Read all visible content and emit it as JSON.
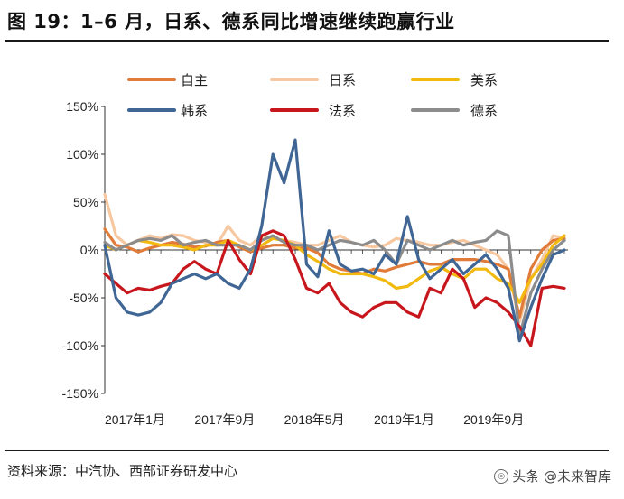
{
  "title": "图 19：1–6 月，日系、德系同比增速继续跑赢行业",
  "source": "资料来源：中汽协、西部证券研发中心",
  "watermark": "头条 @未来智库",
  "chart_data": {
    "type": "line",
    "title": "图 19：1–6 月，日系、德系同比增速继续跑赢行业",
    "xlabel": "",
    "ylabel": "",
    "ylim": [
      -150,
      150
    ],
    "yticks": [
      -150,
      -100,
      -50,
      0,
      50,
      100,
      150
    ],
    "ytick_labels": [
      "-150%",
      "-100%",
      "-50%",
      "0%",
      "50%",
      "100%",
      "150%"
    ],
    "xtick_labels": [
      "2017年1月",
      "2017年9月",
      "2018年5月",
      "2019年1月",
      "2019年9月"
    ],
    "xtick_index": [
      0,
      8,
      16,
      24,
      32
    ],
    "n_points": 42,
    "legend_position": "top",
    "series": [
      {
        "name": "自主",
        "color": "#E07B39",
        "values": [
          22,
          5,
          3,
          -2,
          2,
          5,
          8,
          6,
          3,
          4,
          8,
          10,
          3,
          -2,
          2,
          5,
          5,
          2,
          2,
          -3,
          -15,
          -20,
          -22,
          -25,
          -20,
          -22,
          -18,
          -15,
          -12,
          -15,
          -15,
          -10,
          -10,
          -10,
          -12,
          -15,
          -20,
          -70,
          -20,
          0,
          10,
          12
        ]
      },
      {
        "name": "日系",
        "color": "#F7C8A0",
        "values": [
          58,
          15,
          5,
          10,
          15,
          12,
          16,
          15,
          10,
          8,
          5,
          25,
          10,
          5,
          15,
          12,
          10,
          8,
          5,
          5,
          10,
          15,
          8,
          5,
          3,
          5,
          12,
          10,
          8,
          5,
          5,
          8,
          10,
          5,
          0,
          -5,
          -20,
          -75,
          -30,
          -10,
          15,
          12
        ]
      },
      {
        "name": "美系",
        "color": "#F2B90F",
        "values": [
          5,
          0,
          5,
          10,
          8,
          5,
          5,
          3,
          0,
          5,
          5,
          10,
          5,
          0,
          5,
          12,
          10,
          5,
          -5,
          -12,
          -20,
          -25,
          -25,
          -25,
          -28,
          -32,
          -40,
          -38,
          -30,
          -22,
          -18,
          -25,
          -30,
          -20,
          -20,
          -30,
          -35,
          -55,
          -30,
          -15,
          5,
          15
        ]
      },
      {
        "name": "韩系",
        "color": "#3F6694",
        "values": [
          5,
          -50,
          -65,
          -68,
          -65,
          -55,
          -35,
          -30,
          -25,
          -30,
          -25,
          -35,
          -40,
          -20,
          25,
          100,
          70,
          115,
          -15,
          -28,
          20,
          -15,
          -22,
          -20,
          -25,
          -5,
          -15,
          35,
          -10,
          -30,
          -20,
          -10,
          -25,
          -15,
          -5,
          -20,
          -40,
          -95,
          -60,
          -30,
          -5,
          0
        ]
      },
      {
        "name": "法系",
        "color": "#C8161D",
        "values": [
          -25,
          -35,
          -45,
          -40,
          -42,
          -38,
          -35,
          -20,
          -12,
          -20,
          -25,
          10,
          -10,
          -25,
          15,
          20,
          15,
          -10,
          -40,
          -45,
          -35,
          -55,
          -65,
          -70,
          -60,
          -55,
          -55,
          -65,
          -70,
          -40,
          -45,
          -20,
          -30,
          -60,
          -50,
          -55,
          -65,
          -80,
          -100,
          -40,
          -38,
          -40
        ]
      },
      {
        "name": "德系",
        "color": "#8C8C8C",
        "values": [
          8,
          0,
          5,
          10,
          12,
          10,
          15,
          5,
          8,
          10,
          5,
          5,
          5,
          0,
          10,
          15,
          8,
          5,
          5,
          0,
          5,
          10,
          8,
          5,
          10,
          0,
          -15,
          10,
          5,
          0,
          5,
          10,
          5,
          8,
          10,
          20,
          15,
          -90,
          -45,
          -20,
          0,
          10
        ]
      }
    ]
  }
}
